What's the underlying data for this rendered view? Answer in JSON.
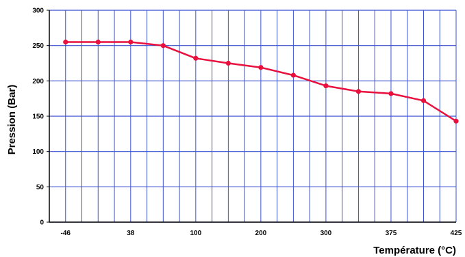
{
  "chart_data": {
    "type": "line",
    "title": "",
    "xlabel": "Température (°C)",
    "ylabel": "Pression (Bar)",
    "x": [
      -46,
      0,
      38,
      50,
      100,
      150,
      200,
      250,
      300,
      325,
      375,
      400,
      425
    ],
    "x_tick_labels": [
      "-46",
      "",
      "38",
      "",
      "100",
      "",
      "200",
      "",
      "300",
      "",
      "375",
      "",
      "425"
    ],
    "series": [
      {
        "name": "",
        "color": "#e8103c",
        "values": [
          255,
          255,
          255,
          250,
          232,
          225,
          219,
          208,
          193,
          185,
          182,
          172,
          143
        ]
      }
    ],
    "ylim": [
      0,
      300
    ],
    "y_ticks": [
      0,
      50,
      100,
      150,
      200,
      250,
      300
    ],
    "grid": true,
    "grid_color": "#3a4fd0",
    "axis_color": "#000000",
    "legend": "none"
  }
}
